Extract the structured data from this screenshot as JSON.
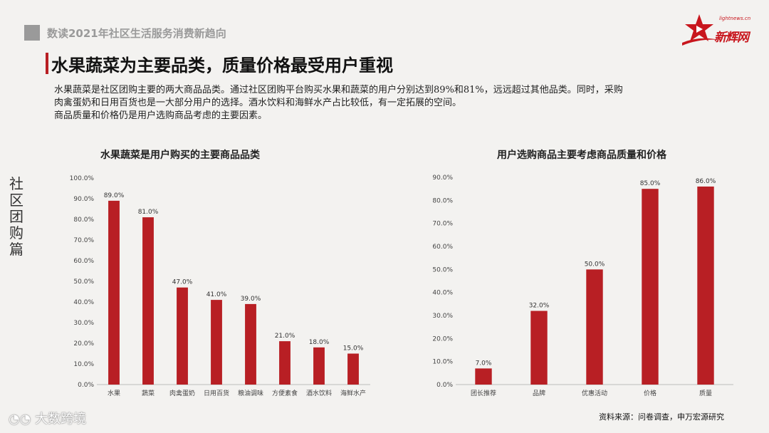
{
  "header": {
    "subtitle": "数读2021年社区生活服务消费新趋向"
  },
  "logo": {
    "url_text": "lightnews.cn",
    "name": "新辉网"
  },
  "title": "水果蔬菜为主要品类，质量价格最受用户重视",
  "paragraph": {
    "line1": "水果蔬菜是社区团购主要的两大商品品类。通过社区团购平台购买水果和蔬菜的用户分别达到89%和81%，远远超过其他品类。同时，采购",
    "line2": "肉禽蛋奶和日用百货也是一大部分用户的选择。酒水饮料和海鲜水产占比较低，有一定拓展的空间。",
    "line3": "商品质量和价格仍是用户选购商品考虑的主要因素。"
  },
  "side_label": [
    "社",
    "区",
    "团",
    "购",
    "篇"
  ],
  "colors": {
    "bar": "#b81f24",
    "accent": "#c8161d"
  },
  "chart_data": [
    {
      "type": "bar",
      "title": "水果蔬菜是用户购买的主要商品品类",
      "categories": [
        "水果",
        "蔬菜",
        "肉禽蛋奶",
        "日用百货",
        "粮油调味",
        "方便素食",
        "酒水饮料",
        "海鲜水产"
      ],
      "values": [
        89.0,
        81.0,
        47.0,
        41.0,
        39.0,
        21.0,
        18.0,
        15.0
      ],
      "value_labels": [
        "89.0%",
        "81.0%",
        "47.0%",
        "41.0%",
        "39.0%",
        "21.0%",
        "18.0%",
        "15.0%"
      ],
      "ylim": [
        0,
        100
      ],
      "yticks": [
        "0.0%",
        "10.0%",
        "20.0%",
        "30.0%",
        "40.0%",
        "50.0%",
        "60.0%",
        "70.0%",
        "80.0%",
        "90.0%",
        "100.0%"
      ],
      "grid": false
    },
    {
      "type": "bar",
      "title": "用户选购商品主要考虑商品质量和价格",
      "categories": [
        "团长推荐",
        "品牌",
        "优惠活动",
        "价格",
        "质量"
      ],
      "values": [
        7.0,
        32.0,
        50.0,
        85.0,
        86.0
      ],
      "value_labels": [
        "7.0%",
        "32.0%",
        "50.0%",
        "85.0%",
        "86.0%"
      ],
      "ylim": [
        0,
        90
      ],
      "yticks": [
        "0.0%",
        "10.0%",
        "20.0%",
        "30.0%",
        "40.0%",
        "50.0%",
        "60.0%",
        "70.0%",
        "80.0%",
        "90.0%"
      ],
      "grid": false
    }
  ],
  "watermark": "大数跨境",
  "source": "资料来源：问卷调查，申万宏源研究"
}
